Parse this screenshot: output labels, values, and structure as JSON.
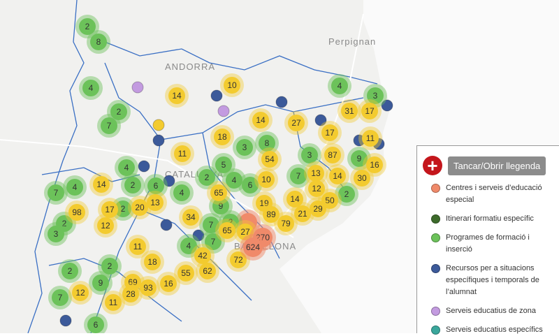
{
  "map_labels": [
    "Perpignan",
    "ANDORRA",
    "CATALUNYA",
    "BARCELONA"
  ],
  "clusters": [
    2,
    8,
    4,
    2,
    7,
    4,
    4,
    7,
    2,
    6,
    4,
    2,
    5,
    3,
    8,
    4,
    6,
    9,
    2,
    2,
    3,
    7,
    4,
    7,
    7,
    3,
    4,
    3,
    9,
    2,
    2,
    2,
    9,
    7,
    6,
    2,
    14,
    10,
    14,
    27,
    18,
    11,
    17,
    31,
    17,
    11,
    87,
    54,
    10,
    13,
    14,
    16,
    30,
    14,
    65,
    12,
    50,
    14,
    29,
    19,
    89,
    21,
    79,
    98,
    17,
    20,
    13,
    12,
    34,
    65,
    27,
    11,
    18,
    42,
    72,
    55,
    62,
    69,
    93,
    16,
    28,
    12,
    11,
    270,
    624
  ],
  "legend": {
    "button": "Tancar/Obrir llegenda",
    "items": [
      "Centres i serveis d’educació especial",
      "Itinerari formatiu específic",
      "Programes de formació i inserció",
      "Recursos per a situacions específiques i temporals de l’alumnat",
      "Serveis educatius de zona",
      "Serveis educatius específics"
    ]
  }
}
